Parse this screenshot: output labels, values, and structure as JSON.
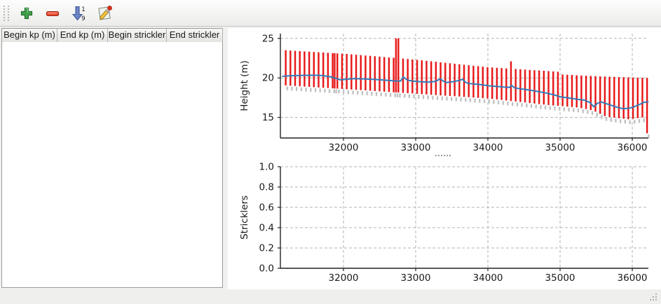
{
  "toolbar": {
    "buttons": [
      {
        "icon": "add-icon"
      },
      {
        "icon": "remove-icon"
      },
      {
        "icon": "sort-ascending-icon",
        "digits": [
          "1",
          "9"
        ]
      },
      {
        "icon": "edit-icon"
      }
    ]
  },
  "table": {
    "columns": [
      "Begin kp (m)",
      "End kp (m)",
      "Begin strickler",
      "End strickler"
    ],
    "rows": []
  },
  "colors": {
    "bars_red": "#e81414",
    "line_blue": "#3579b8",
    "shadow_gray": "#c2c2c2",
    "grid_gray": "#b3b3b3"
  },
  "chart_data": [
    {
      "type": "line",
      "title": "",
      "xlabel": "",
      "ylabel": "Height (m)",
      "xlim": [
        31126,
        36223
      ],
      "ylim": [
        12.4,
        25.6
      ],
      "xticks": [
        32000,
        33000,
        34000,
        35000,
        36000
      ],
      "xticklabels": [
        "32000",
        "33000",
        "34000",
        "35000",
        "36000"
      ],
      "yticks": [
        15,
        20,
        25
      ],
      "yticklabels": [
        "15",
        "20",
        "25"
      ],
      "grid": true,
      "legend": false,
      "colors": {
        "bars": "#e81414",
        "shadow": "#c2c2c2",
        "line": "#3579b8",
        "grid": "#b3b3b3"
      },
      "bars": [
        [
          31200,
          19.05,
          23.5
        ],
        [
          31265,
          19.01,
          23.46
        ],
        [
          31330,
          18.98,
          23.43
        ],
        [
          31395,
          18.94,
          23.39
        ],
        [
          31460,
          18.9,
          23.35
        ],
        [
          31525,
          18.87,
          23.32
        ],
        [
          31590,
          18.83,
          23.28
        ],
        [
          31655,
          18.79,
          23.24
        ],
        [
          31720,
          18.76,
          23.21
        ],
        [
          31785,
          18.72,
          23.17
        ],
        [
          31850,
          18.68,
          23.13
        ],
        [
          31878,
          18.66,
          23.12
        ],
        [
          31915,
          18.65,
          23.1
        ],
        [
          31980,
          18.61,
          23.06
        ],
        [
          32045,
          18.57,
          23.03
        ],
        [
          32110,
          18.53,
          22.98
        ],
        [
          32175,
          18.5,
          22.93
        ],
        [
          32240,
          18.46,
          22.88
        ],
        [
          32305,
          18.42,
          22.83
        ],
        [
          32370,
          18.38,
          22.79
        ],
        [
          32435,
          18.34,
          22.74
        ],
        [
          32500,
          18.3,
          22.69
        ],
        [
          32565,
          18.26,
          22.64
        ],
        [
          32630,
          18.22,
          22.59
        ],
        [
          32695,
          18.18,
          22.55
        ],
        [
          32727,
          18.16,
          25.0
        ],
        [
          32760,
          18.15,
          25.0
        ],
        [
          32825,
          18.11,
          22.44
        ],
        [
          32890,
          18.07,
          22.39
        ],
        [
          32955,
          18.03,
          22.33
        ],
        [
          33020,
          17.99,
          22.28
        ],
        [
          33085,
          17.95,
          22.22
        ],
        [
          33150,
          17.91,
          22.16
        ],
        [
          33215,
          17.87,
          22.1
        ],
        [
          33280,
          17.83,
          22.04
        ],
        [
          33345,
          17.79,
          21.97
        ],
        [
          33410,
          17.75,
          21.91
        ],
        [
          33475,
          17.72,
          21.85
        ],
        [
          33540,
          17.68,
          21.79
        ],
        [
          33605,
          17.64,
          21.73
        ],
        [
          33670,
          17.6,
          21.66
        ],
        [
          33735,
          17.56,
          21.6
        ],
        [
          33800,
          17.52,
          21.54
        ],
        [
          33865,
          17.48,
          21.48
        ],
        [
          33930,
          17.44,
          21.42
        ],
        [
          33995,
          17.4,
          21.35
        ],
        [
          34060,
          17.34,
          21.31
        ],
        [
          34125,
          17.28,
          21.28
        ],
        [
          34190,
          17.21,
          21.24
        ],
        [
          34255,
          17.15,
          21.2
        ],
        [
          34320,
          17.08,
          22.1
        ],
        [
          34385,
          17.02,
          21.13
        ],
        [
          34450,
          16.95,
          21.09
        ],
        [
          34515,
          16.89,
          21.05
        ],
        [
          34580,
          16.82,
          21.01
        ],
        [
          34645,
          16.76,
          20.97
        ],
        [
          34710,
          16.69,
          20.94
        ],
        [
          34775,
          16.63,
          20.9
        ],
        [
          34840,
          16.57,
          20.86
        ],
        [
          34905,
          16.52,
          20.82
        ],
        [
          34970,
          16.47,
          20.78
        ],
        [
          35035,
          16.42,
          20.43
        ],
        [
          35100,
          16.37,
          20.4
        ],
        [
          35165,
          16.32,
          20.37
        ],
        [
          35230,
          16.27,
          20.33
        ],
        [
          35295,
          16.17,
          20.3
        ],
        [
          35360,
          16.06,
          20.28
        ],
        [
          35425,
          15.94,
          20.25
        ],
        [
          35490,
          15.73,
          20.22
        ],
        [
          35555,
          15.46,
          20.19
        ],
        [
          35620,
          15.18,
          20.17
        ],
        [
          35685,
          15.05,
          20.15
        ],
        [
          35750,
          14.98,
          20.13
        ],
        [
          35815,
          14.9,
          20.11
        ],
        [
          35880,
          14.84,
          20.09
        ],
        [
          35945,
          14.77,
          20.07
        ],
        [
          36010,
          14.82,
          20.05
        ],
        [
          36075,
          14.92,
          20.03
        ],
        [
          36140,
          15.0,
          20.01
        ],
        [
          36205,
          13.0,
          20.0
        ]
      ],
      "line": [
        [
          31150,
          20.2
        ],
        [
          31250,
          20.26
        ],
        [
          31400,
          20.3
        ],
        [
          31550,
          20.34
        ],
        [
          31700,
          20.3
        ],
        [
          31820,
          20.15
        ],
        [
          31900,
          19.92
        ],
        [
          31960,
          19.74
        ],
        [
          32050,
          19.84
        ],
        [
          32150,
          19.9
        ],
        [
          32300,
          19.86
        ],
        [
          32450,
          19.8
        ],
        [
          32600,
          19.7
        ],
        [
          32720,
          19.62
        ],
        [
          32790,
          19.6
        ],
        [
          32830,
          20.12
        ],
        [
          32880,
          19.74
        ],
        [
          32950,
          19.6
        ],
        [
          33060,
          19.52
        ],
        [
          33170,
          19.47
        ],
        [
          33270,
          19.55
        ],
        [
          33340,
          19.88
        ],
        [
          33380,
          19.6
        ],
        [
          33430,
          19.42
        ],
        [
          33520,
          19.52
        ],
        [
          33610,
          19.7
        ],
        [
          33650,
          19.82
        ],
        [
          33690,
          19.44
        ],
        [
          33730,
          19.3
        ],
        [
          33820,
          19.22
        ],
        [
          33920,
          19.12
        ],
        [
          34020,
          19.0
        ],
        [
          34120,
          18.92
        ],
        [
          34220,
          18.85
        ],
        [
          34300,
          18.8
        ],
        [
          34330,
          19.04
        ],
        [
          34370,
          18.74
        ],
        [
          34450,
          18.62
        ],
        [
          34560,
          18.48
        ],
        [
          34680,
          18.3
        ],
        [
          34800,
          18.1
        ],
        [
          34920,
          17.85
        ],
        [
          35000,
          17.62
        ],
        [
          35120,
          17.46
        ],
        [
          35240,
          17.3
        ],
        [
          35340,
          17.18
        ],
        [
          35420,
          16.85
        ],
        [
          35465,
          16.35
        ],
        [
          35520,
          16.8
        ],
        [
          35570,
          16.95
        ],
        [
          35640,
          16.74
        ],
        [
          35720,
          16.5
        ],
        [
          35800,
          16.26
        ],
        [
          35870,
          16.1
        ],
        [
          35940,
          16.14
        ],
        [
          36010,
          16.3
        ],
        [
          36090,
          16.6
        ],
        [
          36160,
          16.9
        ],
        [
          36225,
          17.0
        ]
      ]
    },
    {
      "type": "line",
      "title": "",
      "xlabel": "",
      "ylabel": "Stricklers",
      "xlim": [
        31126,
        36223
      ],
      "ylim": [
        0,
        1
      ],
      "xticks": [
        32000,
        33000,
        34000,
        35000,
        36000
      ],
      "xticklabels": [
        "32000",
        "33000",
        "34000",
        "35000",
        "36000"
      ],
      "yticks": [
        0,
        0.2,
        0.4,
        0.6,
        0.8,
        1
      ],
      "yticklabels": [
        "0.0",
        "0.2",
        "0.4",
        "0.6",
        "0.8",
        "1.0"
      ],
      "grid": true,
      "legend": false,
      "colors": {
        "grid": "#b3b3b3"
      },
      "bars": [],
      "line": []
    }
  ]
}
